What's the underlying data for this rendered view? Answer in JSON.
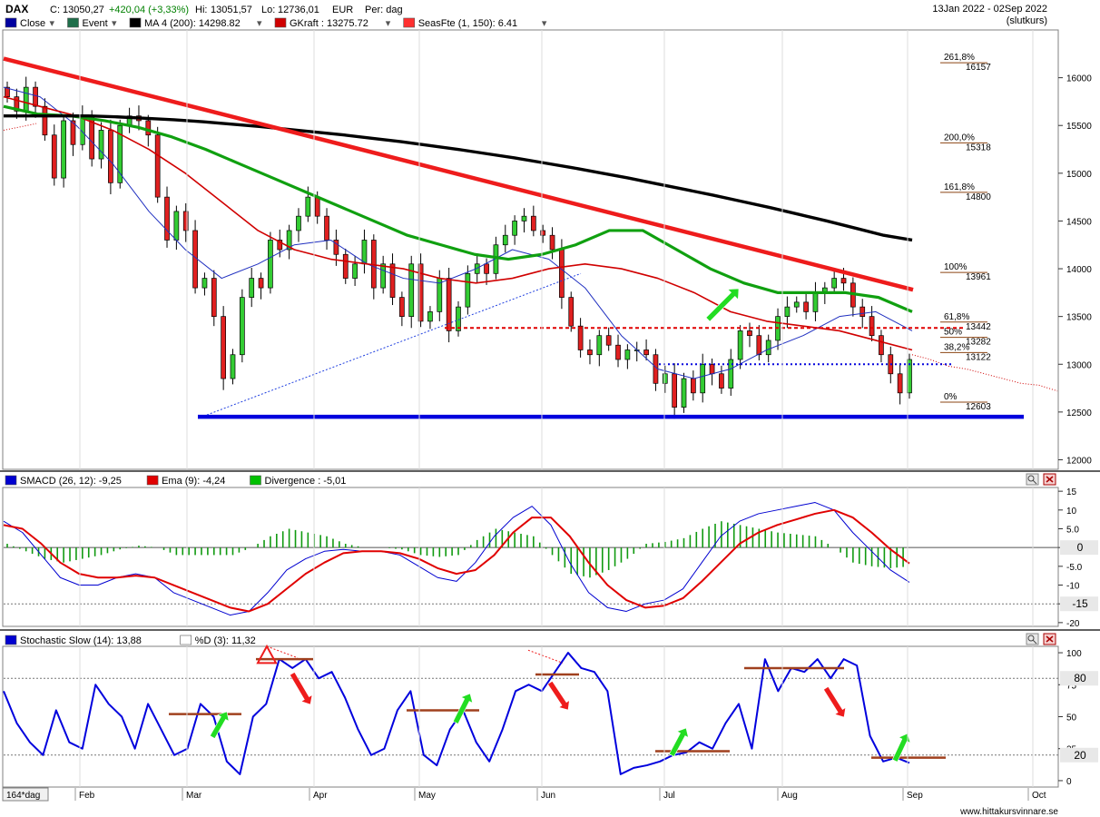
{
  "header": {
    "symbol": "DAX",
    "close_label": "C:",
    "close_value": "13050,27",
    "change": "+420,04 (+3,33%)",
    "hi_label": "Hi:",
    "hi_value": "13051,57",
    "lo_label": "Lo:",
    "lo_value": "12736,01",
    "currency": "EUR",
    "period": "Per: dag",
    "date_range": "13Jan 2022 - 02Sep 2022",
    "price_type": "(slutkurs)"
  },
  "legend_main": [
    {
      "label": "Close",
      "color": "#0000a0"
    },
    {
      "label": "Event",
      "color": "#1e6e4a"
    },
    {
      "label": "MA 4 (200): 14298.82",
      "color": "#000000"
    },
    {
      "label": "GKraft : 13275.72",
      "color": "#d00000"
    },
    {
      "label": "SeasFte (1, 150): 6.41",
      "color": "#ff3030"
    }
  ],
  "legend_macd": [
    {
      "label": "SMACD (26, 12): -9,25",
      "color": "#0000d0"
    },
    {
      "label": "Ema (9): -4,24",
      "color": "#e00000"
    },
    {
      "label": "Divergence : -5,01",
      "color": "#00c000"
    }
  ],
  "legend_stoch": [
    {
      "label": "Stochastic Slow (14): 13,88",
      "color": "#0000d0"
    },
    {
      "label": "%D (3): 11,32",
      "color": "#ffffff"
    }
  ],
  "footer": {
    "period_label": "164*dag",
    "watermark": "www.hittakursvinnare.se"
  },
  "chart_data": [
    {
      "type": "candlestick",
      "panel": "price",
      "yticks": [
        12000,
        12500,
        13000,
        13500,
        14000,
        14500,
        15000,
        15500,
        16000
      ],
      "ylim": [
        11900,
        16500
      ],
      "months": [
        "Feb",
        "Mar",
        "Apr",
        "May",
        "Jun",
        "Jul",
        "Aug",
        "Sep",
        "Oct"
      ],
      "fib_levels": [
        {
          "pct": "261,8%",
          "value": "16157"
        },
        {
          "pct": "200,0%",
          "value": "15318"
        },
        {
          "pct": "161,8%",
          "value": "14800"
        },
        {
          "pct": "100%",
          "value": "13961"
        },
        {
          "pct": "61,8%",
          "value": "13442"
        },
        {
          "pct": "50%",
          "value": "13282"
        },
        {
          "pct": "38,2%",
          "value": "13122"
        },
        {
          "pct": "0%",
          "value": "12603"
        }
      ],
      "close_path": [
        15800,
        15650,
        15900,
        15700,
        15400,
        14950,
        15550,
        15300,
        15600,
        15150,
        15450,
        14900,
        15500,
        15600,
        15550,
        15400,
        14750,
        14300,
        14600,
        14400,
        13800,
        13900,
        13500,
        12850,
        13100,
        13700,
        13900,
        13800,
        14300,
        14200,
        14400,
        14550,
        14750,
        14550,
        14300,
        14150,
        13900,
        14050,
        14300,
        13800,
        14050,
        13700,
        13500,
        14050,
        13450,
        13550,
        13900,
        13350,
        13600,
        13950,
        14050,
        13950,
        14250,
        14350,
        14500,
        14550,
        14400,
        14350,
        14200,
        13700,
        13400,
        13150,
        13100,
        13300,
        13200,
        13050,
        13150,
        13150,
        13100,
        12800,
        12900,
        12550,
        12850,
        12700,
        13000,
        12900,
        12750,
        13050,
        13350,
        13300,
        13100,
        13250,
        13500,
        13600,
        13650,
        13550,
        13750,
        13800,
        13900,
        13850,
        13600,
        13500,
        13300,
        13100,
        12900,
        12700,
        13050
      ],
      "ma200": [
        15600,
        15600,
        15600,
        15600,
        15590,
        15575,
        15560,
        15540,
        15515,
        15490,
        15460,
        15430,
        15400,
        15365,
        15330,
        15290,
        15250,
        15205,
        15160,
        15110,
        15060,
        15005,
        14950,
        14890,
        14830,
        14770,
        14705,
        14640,
        14570,
        14500,
        14425,
        14350,
        14300
      ],
      "ma_green": [
        15700,
        15620,
        15600,
        15550,
        15480,
        15380,
        15250,
        15100,
        14950,
        14800,
        14650,
        14500,
        14350,
        14250,
        14150,
        14100,
        14150,
        14250,
        14400,
        14400,
        14200,
        14000,
        13850,
        13750,
        13750,
        13750,
        13700,
        13550
      ],
      "ma_red_thin": [
        15800,
        15700,
        15600,
        15450,
        15250,
        15000,
        14700,
        14400,
        14200,
        14100,
        14050,
        14000,
        13900,
        13850,
        13900,
        14000,
        14050,
        14000,
        13900,
        13750,
        13550,
        13450,
        13400,
        13350,
        13250,
        13150
      ],
      "ma_blue_thin": [
        15900,
        15800,
        15500,
        15100,
        14600,
        14200,
        13900,
        14050,
        14250,
        14300,
        14050,
        13900,
        13850,
        14000,
        14200,
        14100,
        13800,
        13300,
        12950,
        12850,
        12950,
        13150,
        13300,
        13500,
        13550,
        13350
      ],
      "trendline_top": {
        "from": 16200,
        "to": 13780
      },
      "support_blue": 12450,
      "dashed_red_level": 13380,
      "dotted_blue_level": 13000
    },
    {
      "type": "line",
      "panel": "macd",
      "yticks": [
        15,
        10,
        5.0,
        0,
        -5.0,
        -10,
        -15,
        -20
      ],
      "ytick_labels": [
        "15",
        "10",
        "5.0",
        "0",
        "-5.0",
        "-10",
        "-15",
        "-20"
      ],
      "ylim": [
        -21,
        16
      ],
      "highlight": [
        "0",
        "-15"
      ],
      "series": [
        {
          "name": "SMACD (26, 12)",
          "color": "#0000d0",
          "values": [
            7,
            4,
            -2,
            -8,
            -10,
            -10,
            -8,
            -7,
            -8,
            -12,
            -14,
            -16,
            -18,
            -17,
            -12,
            -6,
            -3,
            -1,
            -0.5,
            -1,
            -1,
            -2,
            -5,
            -8,
            -9,
            -4,
            3,
            8,
            11,
            6,
            -4,
            -12,
            -16,
            -17,
            -15,
            -14,
            -11,
            -4,
            3,
            7,
            9,
            10,
            11,
            12,
            10,
            4,
            -1,
            -6,
            -9.25
          ]
        },
        {
          "name": "Ema (9)",
          "color": "#e00000",
          "values": [
            6,
            5,
            1,
            -4,
            -7,
            -8,
            -8,
            -7.5,
            -8,
            -10,
            -12,
            -14,
            -16,
            -17,
            -15,
            -11,
            -7,
            -4,
            -1.5,
            -1,
            -1,
            -1.5,
            -3,
            -5.5,
            -7,
            -6,
            -2,
            4,
            8,
            8,
            3,
            -4,
            -10,
            -14,
            -16,
            -15.5,
            -13.5,
            -9,
            -4,
            1,
            4,
            6,
            7.5,
            9,
            10,
            8,
            4,
            -0.5,
            -4.24
          ]
        },
        {
          "name": "Divergence",
          "color": "#00c000",
          "values": [
            1,
            -1,
            -3,
            -4,
            -3,
            -2,
            -0.5,
            0.5,
            0,
            -2,
            -2,
            -2,
            -2,
            0,
            3,
            5,
            4,
            3,
            1,
            0,
            0,
            -0.5,
            -2,
            -2.5,
            -2,
            2,
            5,
            4,
            3,
            -2,
            -7,
            -8,
            -6,
            -3,
            1,
            1.5,
            2.5,
            5,
            7,
            6,
            5,
            4,
            3.5,
            3,
            0,
            -4,
            -5,
            -5.5,
            -5.01
          ]
        }
      ]
    },
    {
      "type": "line",
      "panel": "stochastic",
      "yticks": [
        100,
        75,
        50,
        25,
        0
      ],
      "ytick_labels": [
        "100",
        "75",
        "50",
        "25",
        "0"
      ],
      "ylim": [
        -5,
        105
      ],
      "highlight": [
        "80",
        "20"
      ],
      "series": [
        {
          "name": "Stochastic Slow (14)",
          "color": "#0000d0",
          "values": [
            70,
            45,
            30,
            20,
            55,
            30,
            25,
            75,
            60,
            50,
            25,
            60,
            40,
            20,
            25,
            60,
            50,
            15,
            5,
            50,
            60,
            95,
            88,
            95,
            80,
            85,
            65,
            40,
            20,
            25,
            55,
            70,
            20,
            12,
            40,
            55,
            30,
            15,
            40,
            70,
            75,
            70,
            85,
            100,
            88,
            85,
            70,
            5,
            10,
            12,
            15,
            20,
            22,
            30,
            25,
            45,
            60,
            25,
            95,
            70,
            88,
            85,
            95,
            80,
            95,
            90,
            35,
            15,
            18,
            13.88
          ]
        }
      ]
    }
  ]
}
